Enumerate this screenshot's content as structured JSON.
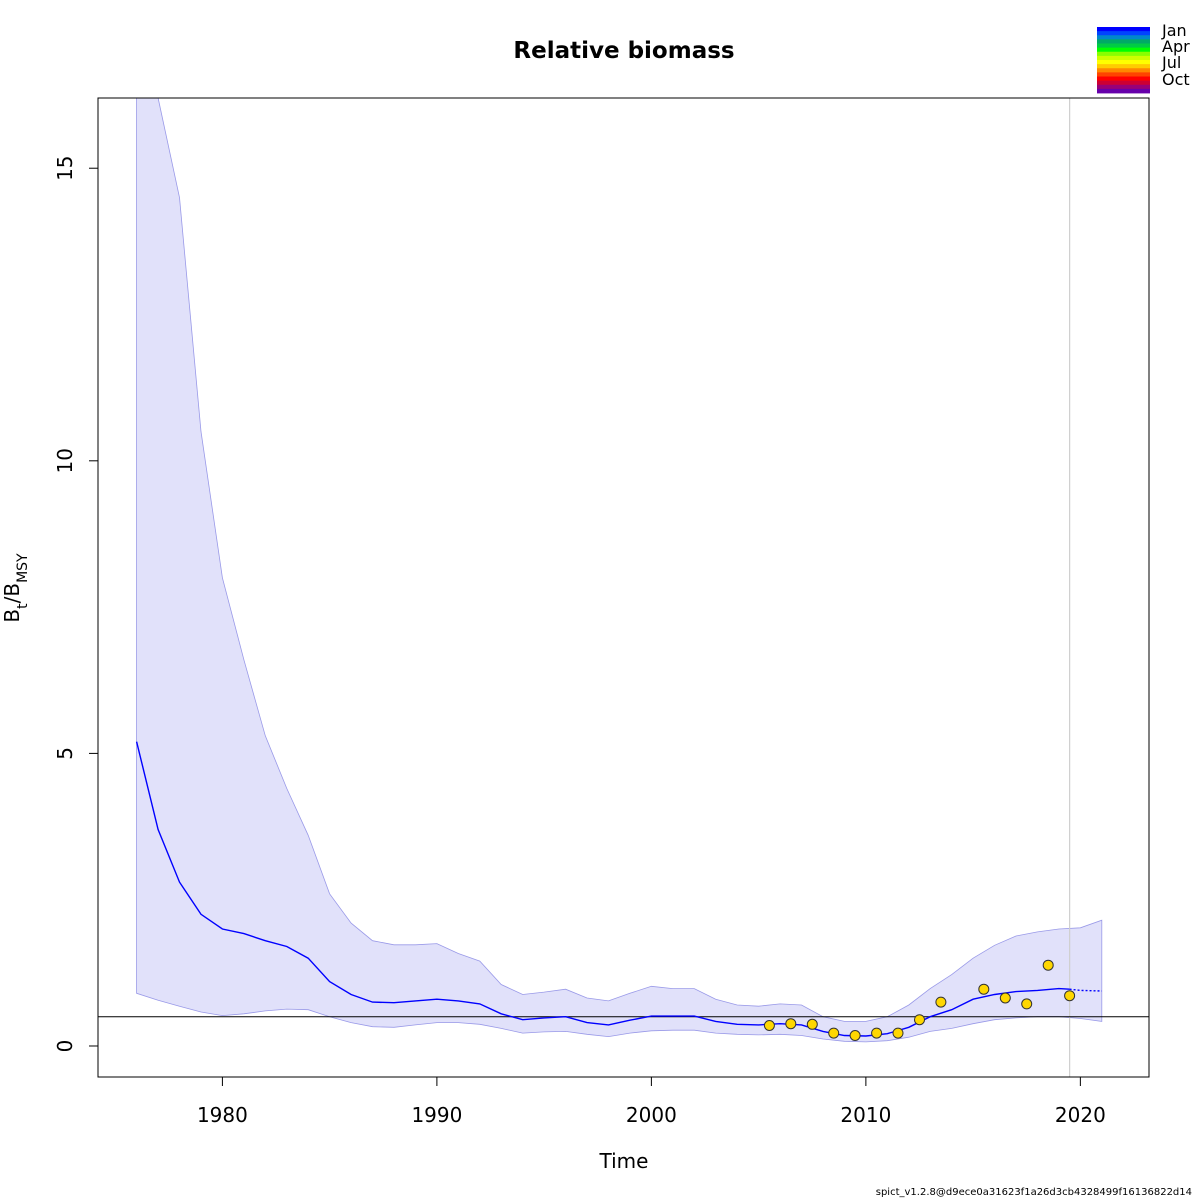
{
  "chart_data": {
    "type": "line",
    "title": "Relative biomass",
    "xlabel": "Time",
    "ylabel_main": "B",
    "ylabel_sub1": "t",
    "ylabel_sep": "/B",
    "ylabel_sub2": "MSY",
    "xlim": [
      1974.2,
      2023.2
    ],
    "ylim": [
      -0.53,
      16.2
    ],
    "xticks": [
      1980,
      1990,
      2000,
      2010,
      2020
    ],
    "yticks": [
      0,
      5,
      10,
      15
    ],
    "reference_line_y": 0.5,
    "vertical_line_x": 2019.5,
    "grid": false,
    "legend": {
      "position": "top-right",
      "labels": [
        "Jan",
        "Apr",
        "Jul",
        "Oct"
      ],
      "colors": [
        "#0000ff",
        "#0044ff",
        "#0088cc",
        "#00aa66",
        "#00cc44",
        "#00ff00",
        "#88ff00",
        "#ccff00",
        "#ffff00",
        "#ffcc00",
        "#ff8800",
        "#ff4400",
        "#ff0000",
        "#cc0033",
        "#990077",
        "#6600aa"
      ]
    },
    "series": [
      {
        "name": "estimate",
        "color": "#0000ff",
        "x": [
          1976,
          1977,
          1978,
          1979,
          1980,
          1981,
          1982,
          1983,
          1984,
          1985,
          1986,
          1987,
          1988,
          1989,
          1990,
          1991,
          1992,
          1993,
          1994,
          1995,
          1996,
          1997,
          1998,
          1999,
          2000,
          2001,
          2002,
          2003,
          2004,
          2005,
          2006,
          2007,
          2008,
          2009,
          2010,
          2011,
          2012,
          2013,
          2014,
          2015,
          2016,
          2017,
          2018,
          2019,
          2019.5
        ],
        "y": [
          5.2,
          3.7,
          2.8,
          2.25,
          2.0,
          1.92,
          1.8,
          1.7,
          1.5,
          1.1,
          0.88,
          0.75,
          0.74,
          0.77,
          0.8,
          0.77,
          0.72,
          0.55,
          0.45,
          0.48,
          0.5,
          0.4,
          0.36,
          0.44,
          0.51,
          0.51,
          0.51,
          0.42,
          0.37,
          0.36,
          0.38,
          0.36,
          0.25,
          0.18,
          0.17,
          0.21,
          0.32,
          0.5,
          0.62,
          0.8,
          0.88,
          0.93,
          0.95,
          0.98,
          0.97
        ]
      },
      {
        "name": "forecast",
        "color": "#0000ff",
        "dashed": true,
        "x": [
          2019.5,
          2020,
          2021
        ],
        "y": [
          0.97,
          0.95,
          0.94
        ]
      }
    ],
    "confidence_band": {
      "color": "#e1e1fa",
      "edge_color": "#9999e8",
      "x": [
        1976,
        1977,
        1978,
        1979,
        1980,
        1981,
        1982,
        1983,
        1984,
        1985,
        1986,
        1987,
        1988,
        1989,
        1990,
        1991,
        1992,
        1993,
        1994,
        1995,
        1996,
        1997,
        1998,
        1999,
        2000,
        2001,
        2002,
        2003,
        2004,
        2005,
        2006,
        2007,
        2008,
        2009,
        2010,
        2011,
        2012,
        2013,
        2014,
        2015,
        2016,
        2017,
        2018,
        2019,
        2020,
        2021
      ],
      "upper": [
        16.2,
        16.2,
        14.5,
        10.5,
        8.0,
        6.6,
        5.3,
        4.4,
        3.6,
        2.6,
        2.1,
        1.8,
        1.73,
        1.73,
        1.75,
        1.58,
        1.45,
        1.05,
        0.88,
        0.92,
        0.97,
        0.82,
        0.77,
        0.9,
        1.02,
        0.98,
        0.98,
        0.8,
        0.7,
        0.68,
        0.72,
        0.7,
        0.5,
        0.42,
        0.42,
        0.5,
        0.7,
        0.98,
        1.22,
        1.5,
        1.72,
        1.88,
        1.95,
        2.0,
        2.02,
        2.15
      ],
      "lower": [
        0.9,
        0.78,
        0.68,
        0.58,
        0.52,
        0.55,
        0.6,
        0.63,
        0.62,
        0.5,
        0.4,
        0.33,
        0.32,
        0.36,
        0.4,
        0.4,
        0.37,
        0.3,
        0.22,
        0.24,
        0.25,
        0.2,
        0.16,
        0.22,
        0.26,
        0.27,
        0.27,
        0.22,
        0.2,
        0.19,
        0.2,
        0.18,
        0.12,
        0.08,
        0.07,
        0.09,
        0.15,
        0.25,
        0.3,
        0.38,
        0.45,
        0.48,
        0.5,
        0.5,
        0.47,
        0.42
      ]
    },
    "observations": {
      "fill": "#ffd700",
      "edge": "#333333",
      "x": [
        2005.5,
        2006.5,
        2007.5,
        2008.5,
        2009.5,
        2010.5,
        2011.5,
        2012.5,
        2013.5,
        2015.5,
        2016.5,
        2017.5,
        2018.5,
        2019.5
      ],
      "y": [
        0.35,
        0.38,
        0.37,
        0.22,
        0.18,
        0.22,
        0.22,
        0.45,
        0.75,
        0.97,
        0.82,
        0.72,
        1.38,
        0.86
      ]
    }
  },
  "footer": "spict_v1.2.8@d9ece0a31623f1a26d3cb4328499f16136822d14"
}
